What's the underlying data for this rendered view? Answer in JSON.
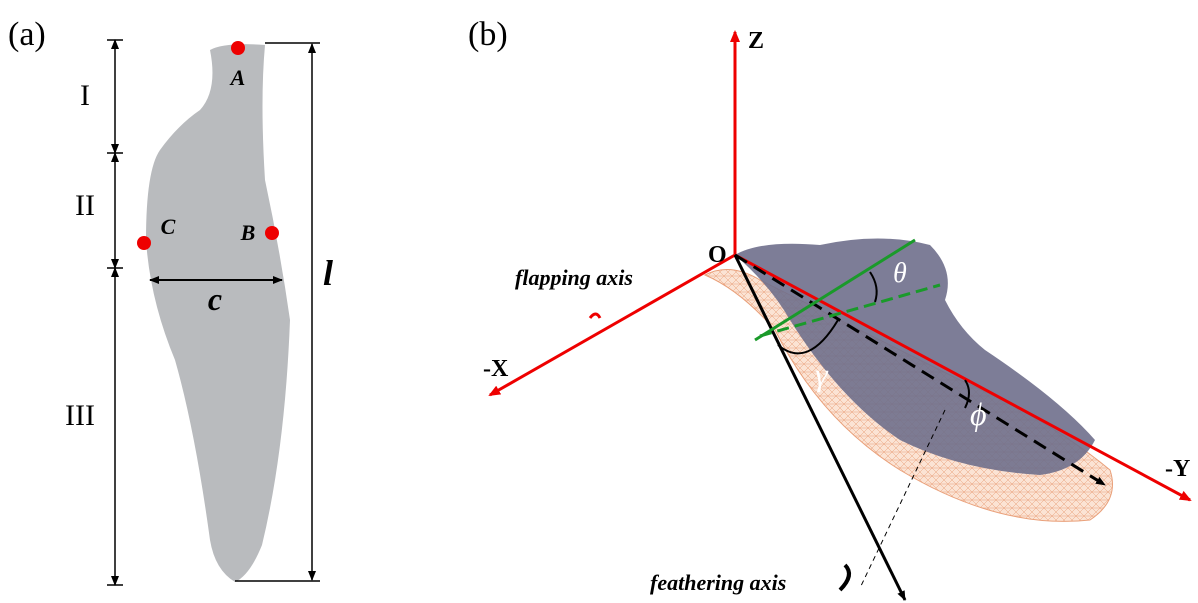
{
  "panel_a": {
    "label": "(a)",
    "segments": [
      "I",
      "II",
      "III"
    ],
    "points": [
      "A",
      "B",
      "C"
    ],
    "chord": "c",
    "length": "l"
  },
  "panel_b": {
    "label": "(b)",
    "origin": "O",
    "axes": {
      "z": "Z",
      "x": "-X",
      "y": "-Y"
    },
    "flapping_axis": "flapping axis",
    "feathering_axis": "feathering axis",
    "angles": {
      "theta": "θ",
      "gamma": "γ",
      "phi": "ϕ"
    }
  }
}
